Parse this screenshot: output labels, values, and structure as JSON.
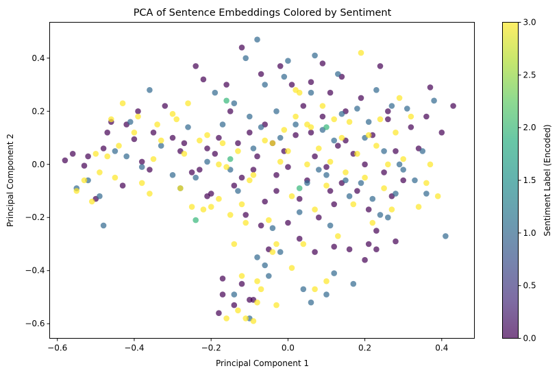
{
  "chart_data": {
    "type": "scatter",
    "title": "PCA of Sentence Embeddings Colored by Sentiment",
    "xlabel": "Principal Component 1",
    "ylabel": "Principal Component 2",
    "xlim": [
      -0.62,
      0.485
    ],
    "ylim": [
      -0.655,
      0.535
    ],
    "xticks": [
      -0.6,
      -0.4,
      -0.2,
      0.0,
      0.2,
      0.4
    ],
    "yticks": [
      -0.6,
      -0.4,
      -0.2,
      0.0,
      0.2,
      0.4
    ],
    "grid": false,
    "colorbar": {
      "label": "Sentiment Label (Encoded)",
      "colormap": "viridis",
      "range": [
        0.0,
        3.0
      ],
      "ticks": [
        0.0,
        0.5,
        1.0,
        1.5,
        2.0,
        2.5,
        3.0
      ]
    },
    "marker_alpha": 0.7,
    "series": [
      {
        "label_value": 0,
        "color": "#440154",
        "points": [
          [
            -0.58,
            0.015
          ],
          [
            -0.56,
            0.04
          ],
          [
            -0.53,
            -0.005
          ],
          [
            -0.52,
            0.03
          ],
          [
            -0.5,
            -0.13
          ],
          [
            -0.48,
            0.06
          ],
          [
            -0.47,
            0.12
          ],
          [
            -0.46,
            0.16
          ],
          [
            -0.43,
            -0.08
          ],
          [
            -0.42,
            0.15
          ],
          [
            -0.4,
            0.095
          ],
          [
            -0.39,
            0.2
          ],
          [
            -0.38,
            0.01
          ],
          [
            -0.36,
            -0.02
          ],
          [
            -0.35,
            0.12
          ],
          [
            -0.32,
            0.22
          ],
          [
            -0.3,
            0.1
          ],
          [
            -0.28,
            0.05
          ],
          [
            -0.27,
            0.08
          ],
          [
            -0.25,
            -0.03
          ],
          [
            -0.24,
            0.37
          ],
          [
            -0.22,
            0.32
          ],
          [
            -0.21,
            0.06
          ],
          [
            -0.2,
            -0.11
          ],
          [
            -0.18,
            0.1
          ],
          [
            -0.16,
            0.3
          ],
          [
            -0.15,
            0.2
          ],
          [
            -0.13,
            0.08
          ],
          [
            -0.12,
            -0.05
          ],
          [
            -0.11,
            -0.19
          ],
          [
            -0.1,
            0.12
          ],
          [
            -0.09,
            -0.02
          ],
          [
            -0.08,
            0.03
          ],
          [
            -0.07,
            -0.23
          ],
          [
            -0.06,
            0.15
          ],
          [
            -0.05,
            -0.32
          ],
          [
            -0.04,
            0.08
          ],
          [
            -0.03,
            -0.1
          ],
          [
            -0.02,
            0.37
          ],
          [
            -0.01,
            0.05
          ],
          [
            0.0,
            -0.01
          ],
          [
            0.01,
            0.3
          ],
          [
            0.02,
            0.11
          ],
          [
            0.03,
            -0.13
          ],
          [
            0.04,
            0.22
          ],
          [
            0.05,
            -0.06
          ],
          [
            0.06,
            0.12
          ],
          [
            0.07,
            0.03
          ],
          [
            0.08,
            -0.2
          ],
          [
            0.09,
            0.18
          ],
          [
            0.1,
            -0.01
          ],
          [
            0.11,
            0.27
          ],
          [
            0.12,
            -0.15
          ],
          [
            0.13,
            0.07
          ],
          [
            0.14,
            -0.07
          ],
          [
            0.15,
            0.2
          ],
          [
            0.16,
            -0.32
          ],
          [
            0.17,
            0.04
          ],
          [
            0.18,
            -0.1
          ],
          [
            0.19,
            0.25
          ],
          [
            0.2,
            0.0
          ],
          [
            0.21,
            -0.17
          ],
          [
            0.22,
            0.11
          ],
          [
            0.23,
            -0.25
          ],
          [
            0.24,
            0.37
          ],
          [
            0.25,
            -0.03
          ],
          [
            0.26,
            0.17
          ],
          [
            0.27,
            -0.12
          ],
          [
            0.28,
            0.05
          ],
          [
            0.3,
            -0.06
          ],
          [
            0.32,
            0.14
          ],
          [
            0.34,
            0.06
          ],
          [
            0.37,
            0.29
          ],
          [
            0.4,
            0.12
          ],
          [
            0.43,
            0.22
          ],
          [
            -0.1,
            -0.51
          ],
          [
            -0.09,
            -0.51
          ],
          [
            -0.12,
            -0.45
          ],
          [
            -0.17,
            -0.43
          ],
          [
            -0.18,
            -0.56
          ],
          [
            -0.14,
            -0.53
          ],
          [
            -0.17,
            -0.49
          ],
          [
            -0.21,
            -0.12
          ],
          [
            -0.23,
            -0.02
          ],
          [
            -0.19,
            0.04
          ],
          [
            -0.07,
            0.34
          ],
          [
            -0.12,
            0.44
          ],
          [
            0.09,
            0.38
          ],
          [
            0.2,
            -0.36
          ],
          [
            0.36,
            0.18
          ],
          [
            0.06,
            0.31
          ],
          [
            0.14,
            0.33
          ],
          [
            0.26,
            0.2
          ],
          [
            0.11,
            -0.1
          ],
          [
            -0.03,
            -0.04
          ],
          [
            0.0,
            -0.22
          ],
          [
            0.03,
            -0.28
          ],
          [
            0.07,
            -0.33
          ],
          [
            0.12,
            -0.31
          ],
          [
            0.21,
            -0.3
          ],
          [
            0.23,
            -0.32
          ],
          [
            0.28,
            -0.29
          ],
          [
            -0.06,
            -0.14
          ],
          [
            -0.14,
            -0.08
          ],
          [
            0.15,
            0.09
          ]
        ]
      },
      {
        "label_value": 1,
        "color": "#31688e",
        "points": [
          [
            -0.55,
            -0.09
          ],
          [
            -0.52,
            -0.06
          ],
          [
            -0.49,
            -0.12
          ],
          [
            -0.48,
            -0.23
          ],
          [
            -0.45,
            0.05
          ],
          [
            -0.42,
            0.03
          ],
          [
            -0.41,
            0.16
          ],
          [
            -0.38,
            -0.01
          ],
          [
            -0.36,
            0.28
          ],
          [
            -0.33,
            0.07
          ],
          [
            -0.3,
            -0.04
          ],
          [
            -0.28,
            -0.09
          ],
          [
            -0.26,
            0.14
          ],
          [
            -0.24,
            -0.05
          ],
          [
            -0.21,
            0.01
          ],
          [
            -0.19,
            0.27
          ],
          [
            -0.17,
            0.15
          ],
          [
            -0.15,
            -0.02
          ],
          [
            -0.14,
            0.23
          ],
          [
            -0.13,
            -0.1
          ],
          [
            -0.11,
            0.4
          ],
          [
            -0.1,
            0.18
          ],
          [
            -0.09,
            0.06
          ],
          [
            -0.08,
            0.47
          ],
          [
            -0.07,
            0.14
          ],
          [
            -0.06,
            0.3
          ],
          [
            -0.04,
            -0.24
          ],
          [
            -0.03,
            0.2
          ],
          [
            -0.02,
            0.1
          ],
          [
            -0.01,
            0.33
          ],
          [
            0.0,
            0.39
          ],
          [
            0.02,
            0.15
          ],
          [
            0.03,
            -0.18
          ],
          [
            0.05,
            -0.07
          ],
          [
            0.06,
            0.27
          ],
          [
            0.07,
            0.41
          ],
          [
            0.08,
            -0.02
          ],
          [
            0.09,
            0.13
          ],
          [
            0.1,
            -0.04
          ],
          [
            0.11,
            -0.23
          ],
          [
            0.12,
            0.09
          ],
          [
            0.13,
            0.34
          ],
          [
            0.14,
            0.19
          ],
          [
            0.15,
            -0.06
          ],
          [
            0.16,
            -0.12
          ],
          [
            0.17,
            -0.45
          ],
          [
            0.18,
            0.21
          ],
          [
            0.19,
            -0.07
          ],
          [
            0.2,
            0.1
          ],
          [
            0.21,
            0.16
          ],
          [
            0.22,
            -0.13
          ],
          [
            0.23,
            0.28
          ],
          [
            0.24,
            -0.19
          ],
          [
            0.25,
            0.05
          ],
          [
            0.26,
            -0.2
          ],
          [
            0.27,
            0.22
          ],
          [
            0.28,
            -0.11
          ],
          [
            0.29,
            0.0
          ],
          [
            0.3,
            -0.02
          ],
          [
            0.31,
            0.21
          ],
          [
            0.33,
            -0.06
          ],
          [
            0.35,
            0.05
          ],
          [
            0.36,
            -0.11
          ],
          [
            0.38,
            0.24
          ],
          [
            0.41,
            -0.27
          ],
          [
            -0.1,
            -0.58
          ],
          [
            -0.14,
            -0.49
          ],
          [
            0.06,
            -0.52
          ],
          [
            0.04,
            -0.47
          ],
          [
            -0.05,
            -0.42
          ],
          [
            -0.06,
            -0.38
          ],
          [
            -0.08,
            -0.35
          ],
          [
            -0.02,
            -0.33
          ],
          [
            0.1,
            -0.49
          ],
          [
            0.12,
            -0.41
          ]
        ]
      },
      {
        "label_value": 2,
        "color": "#35b779",
        "points": [
          [
            -0.24,
            -0.21
          ],
          [
            0.03,
            -0.09
          ],
          [
            -0.16,
            0.24
          ],
          [
            0.1,
            0.14
          ],
          [
            -0.15,
            0.02
          ]
        ]
      },
      {
        "label_value": 3,
        "color": "#fde725",
        "points": [
          [
            -0.55,
            -0.1
          ],
          [
            -0.53,
            -0.06
          ],
          [
            -0.51,
            -0.14
          ],
          [
            -0.5,
            0.04
          ],
          [
            -0.49,
            -0.03
          ],
          [
            -0.47,
            0.03
          ],
          [
            -0.46,
            0.17
          ],
          [
            -0.44,
            0.07
          ],
          [
            -0.43,
            0.23
          ],
          [
            -0.4,
            0.12
          ],
          [
            -0.39,
            0.18
          ],
          [
            -0.38,
            -0.07
          ],
          [
            -0.36,
            -0.11
          ],
          [
            -0.34,
            0.15
          ],
          [
            -0.33,
            0.09
          ],
          [
            -0.3,
            0.19
          ],
          [
            -0.29,
            0.17
          ],
          [
            -0.27,
            0.04
          ],
          [
            -0.26,
            0.23
          ],
          [
            -0.25,
            -0.16
          ],
          [
            -0.23,
            0.09
          ],
          [
            -0.22,
            -0.17
          ],
          [
            -0.21,
            0.11
          ],
          [
            -0.2,
            -0.16
          ],
          [
            -0.18,
            -0.13
          ],
          [
            -0.17,
            0.08
          ],
          [
            -0.16,
            -0.01
          ],
          [
            -0.15,
            -0.19
          ],
          [
            -0.13,
            0.05
          ],
          [
            -0.12,
            -0.15
          ],
          [
            -0.11,
            -0.22
          ],
          [
            -0.1,
            -0.06
          ],
          [
            -0.09,
            -0.04
          ],
          [
            -0.08,
            -0.44
          ],
          [
            -0.07,
            -0.47
          ],
          [
            -0.06,
            0.09
          ],
          [
            -0.05,
            -0.21
          ],
          [
            -0.04,
            0.08
          ],
          [
            -0.03,
            -0.3
          ],
          [
            -0.02,
            0.01
          ],
          [
            -0.01,
            0.13
          ],
          [
            0.0,
            0.05
          ],
          [
            0.01,
            -0.12
          ],
          [
            0.02,
            0.18
          ],
          [
            0.03,
            0.27
          ],
          [
            0.04,
            -0.3
          ],
          [
            0.05,
            0.0
          ],
          [
            0.06,
            0.14
          ],
          [
            0.07,
            -0.17
          ],
          [
            0.08,
            0.06
          ],
          [
            0.09,
            0.22
          ],
          [
            0.1,
            -0.08
          ],
          [
            0.11,
            0.01
          ],
          [
            0.12,
            0.17
          ],
          [
            0.13,
            -0.27
          ],
          [
            0.14,
            0.1
          ],
          [
            0.15,
            -0.03
          ],
          [
            0.16,
            0.16
          ],
          [
            0.17,
            -0.15
          ],
          [
            0.18,
            0.04
          ],
          [
            0.19,
            0.42
          ],
          [
            0.2,
            -0.05
          ],
          [
            0.21,
            0.11
          ],
          [
            0.22,
            -0.22
          ],
          [
            0.23,
            0.07
          ],
          [
            0.24,
            0.17
          ],
          [
            0.25,
            -0.09
          ],
          [
            0.26,
            0.0
          ],
          [
            0.27,
            -0.17
          ],
          [
            0.28,
            0.12
          ],
          [
            0.29,
            0.25
          ],
          [
            0.3,
            0.02
          ],
          [
            0.32,
            0.18
          ],
          [
            0.34,
            -0.16
          ],
          [
            0.36,
            -0.07
          ],
          [
            0.37,
            0.0
          ],
          [
            0.39,
            -0.12
          ],
          [
            -0.12,
            -0.42
          ],
          [
            -0.13,
            -0.55
          ],
          [
            -0.11,
            -0.58
          ],
          [
            -0.08,
            -0.52
          ],
          [
            -0.09,
            -0.59
          ],
          [
            -0.16,
            -0.58
          ],
          [
            -0.04,
            -0.33
          ],
          [
            0.01,
            -0.39
          ],
          [
            0.07,
            -0.47
          ],
          [
            0.1,
            -0.44
          ],
          [
            -0.03,
            -0.53
          ],
          [
            0.05,
            0.15
          ],
          [
            0.02,
            0.28
          ],
          [
            -0.14,
            -0.3
          ],
          [
            -0.18,
            0.0
          ],
          [
            -0.28,
            -0.09
          ],
          [
            -0.35,
            0.02
          ],
          [
            -0.45,
            -0.05
          ]
        ]
      }
    ]
  }
}
